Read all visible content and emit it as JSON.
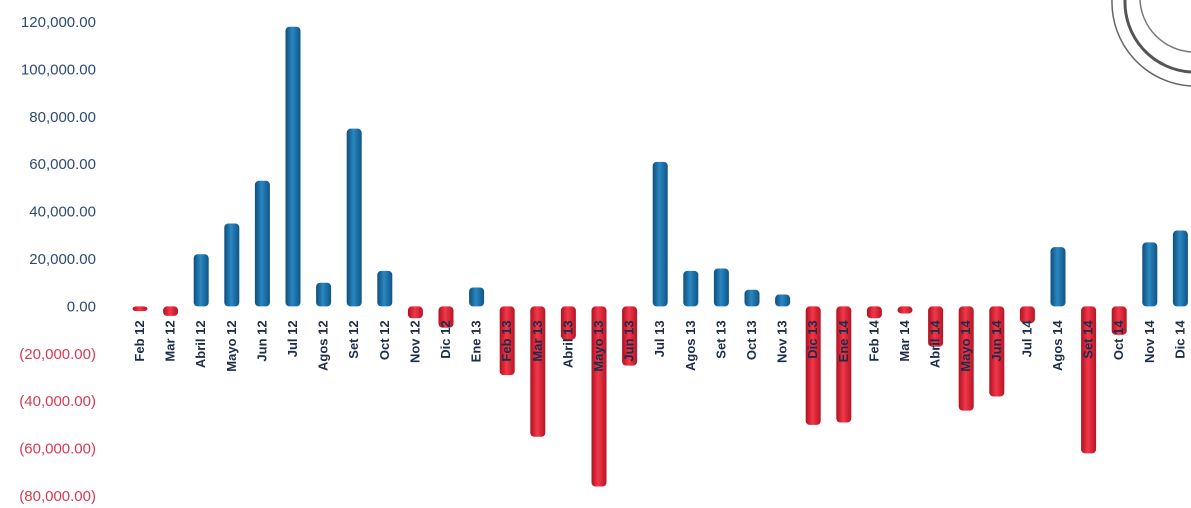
{
  "chart_data": {
    "type": "bar",
    "title": "",
    "xlabel": "",
    "ylabel": "",
    "ylim": [
      -80000,
      120000
    ],
    "yticks": [
      120000,
      100000,
      80000,
      60000,
      40000,
      20000,
      0,
      -20000,
      -40000,
      -60000,
      -80000
    ],
    "ytick_labels": [
      "120,000.00",
      "100,000.00",
      "80,000.00",
      "60,000.00",
      "40,000.00",
      "20,000.00",
      "0.00",
      "(20,000.00)",
      "(40,000.00)",
      "(60,000.00)",
      "(80,000.00)"
    ],
    "categories": [
      "Feb 12",
      "Mar 12",
      "Abril 12",
      "Mayo 12",
      "Jun 12",
      "Jul 12",
      "Agos 12",
      "Set 12",
      "Oct 12",
      "Nov 12",
      "Dic 12",
      "Ene 13",
      "Feb 13",
      "Mar 13",
      "Abril 13",
      "Mayo 13",
      "Jun 13",
      "Jul 13",
      "Agos 13",
      "Set 13",
      "Oct 13",
      "Nov 13",
      "Dic 13",
      "Ene 14",
      "Feb 14",
      "Mar 14",
      "Abril 14",
      "Mayo 14",
      "Jun 14",
      "Jul 14",
      "Agos 14",
      "Set 14",
      "Oct 14",
      "Nov 14",
      "Dic 14"
    ],
    "values": [
      -2000,
      -4000,
      22000,
      35000,
      53000,
      118000,
      10000,
      75000,
      15000,
      -5000,
      -9000,
      8000,
      -29000,
      -55000,
      -14000,
      -76000,
      -25000,
      61000,
      15000,
      16000,
      7000,
      5000,
      -50000,
      -49000,
      -5000,
      -3000,
      -17000,
      -44000,
      -38000,
      -7000,
      25000,
      -62000,
      -12000,
      27000,
      32000
    ],
    "colors": {
      "positive": "#1a6ea3",
      "negative": "#e11b2e",
      "positive_tick": "#2d4b73",
      "negative_tick": "#d83a52"
    },
    "grid": false,
    "legend": "none"
  }
}
